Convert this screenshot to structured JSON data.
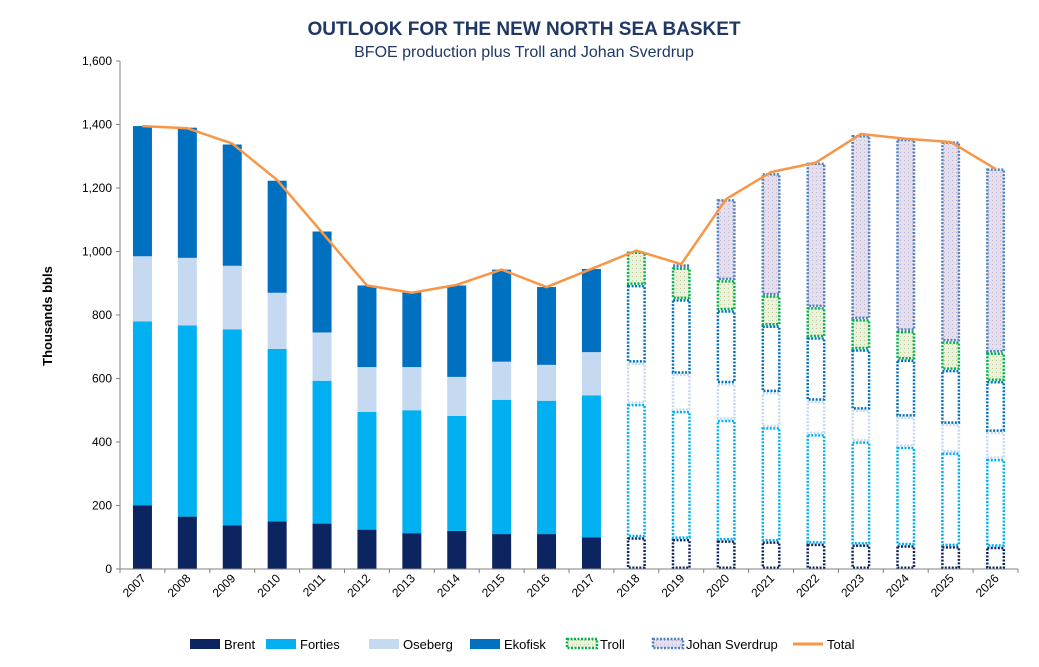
{
  "chart_data": {
    "type": "bar",
    "title": "OUTLOOK FOR THE NEW NORTH SEA BASKET",
    "subtitle": "BFOE production plus Troll and Johan Sverdrup",
    "ylabel": "Thousands bbls",
    "ylim": [
      0,
      1600
    ],
    "yticks": [
      0,
      200,
      400,
      600,
      800,
      1000,
      1200,
      1400,
      1600
    ],
    "ytick_labels": [
      "0",
      "200",
      "400",
      "600",
      "800",
      "1,000",
      "1,200",
      "1,400",
      "1,600"
    ],
    "categories": [
      "2007",
      "2008",
      "2009",
      "2010",
      "2011",
      "2012",
      "2013",
      "2014",
      "2015",
      "2016",
      "2017",
      "2018",
      "2019",
      "2020",
      "2021",
      "2022",
      "2023",
      "2024",
      "2025",
      "2026"
    ],
    "forecast_from": "2018",
    "legend_position": "bottom",
    "series": [
      {
        "name": "Brent",
        "color": "#0c2460",
        "kind": "bar",
        "values": [
          200,
          165,
          137,
          150,
          143,
          124,
          113,
          120,
          110,
          110,
          100,
          100,
          95,
          90,
          87,
          80,
          77,
          75,
          72,
          70
        ]
      },
      {
        "name": "Forties",
        "color": "#00b0f0",
        "kind": "bar",
        "values": [
          580,
          602,
          618,
          543,
          450,
          371,
          387,
          362,
          423,
          420,
          447,
          420,
          403,
          380,
          360,
          345,
          325,
          310,
          295,
          277
        ]
      },
      {
        "name": "Oseberg",
        "color": "#c5d9f1",
        "kind": "bar",
        "values": [
          205,
          213,
          200,
          177,
          152,
          141,
          136,
          123,
          120,
          113,
          136,
          130,
          117,
          115,
          110,
          105,
          100,
          95,
          90,
          85
        ]
      },
      {
        "name": "Ekofisk",
        "color": "#0070c0",
        "kind": "bar",
        "values": [
          410,
          410,
          382,
          353,
          318,
          257,
          235,
          288,
          290,
          245,
          262,
          245,
          235,
          230,
          210,
          200,
          190,
          180,
          170,
          160
        ]
      },
      {
        "name": "Troll",
        "color": "#00b050",
        "fill": "#ebf1de",
        "kind": "bar",
        "values": [
          0,
          0,
          0,
          0,
          0,
          0,
          0,
          0,
          0,
          0,
          0,
          105,
          100,
          95,
          95,
          95,
          95,
          90,
          90,
          90
        ]
      },
      {
        "name": "Johan Sverdrup",
        "color": "#4f81bd",
        "fill": "#e4dfec",
        "kind": "bar",
        "values": [
          0,
          0,
          0,
          0,
          0,
          0,
          0,
          0,
          0,
          0,
          0,
          0,
          10,
          255,
          385,
          455,
          580,
          605,
          630,
          580
        ]
      },
      {
        "name": "Total",
        "color": "#f79646",
        "kind": "line",
        "values": [
          1395,
          1388,
          1340,
          1225,
          1060,
          893,
          870,
          895,
          943,
          888,
          945,
          1003,
          960,
          1165,
          1250,
          1280,
          1370,
          1355,
          1345,
          1260
        ]
      }
    ]
  }
}
